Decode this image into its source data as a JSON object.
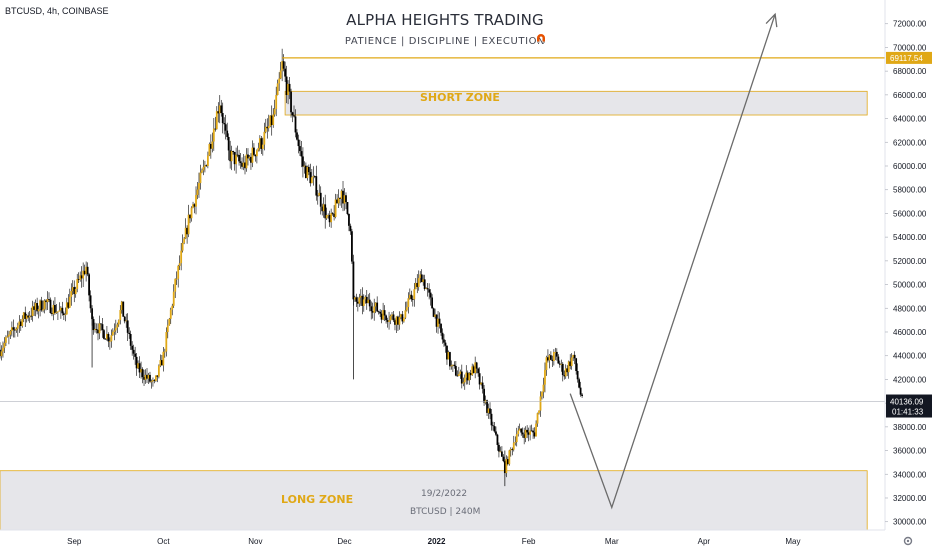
{
  "header": {
    "symbol_label": "BTCUSD, 4h, COINBASE"
  },
  "watermark": {
    "title": "ALPHA HEIGHTS TRADING",
    "subtitle": "PATIENCE  |  DISCIPLINE  |  EXECUTION",
    "icon": "magnet-icon",
    "icon_color": "#e65100"
  },
  "zones": {
    "short_label": "SHORT ZONE",
    "long_label": "LONG ZONE",
    "label_color": "#e0a816"
  },
  "snapshot": {
    "date": "19/2/2022",
    "symbol_tf": "BTCUSD | 240M"
  },
  "price_badges": {
    "high_line_value": "69117.54",
    "current_price": "40136.09",
    "countdown": "01:41:33"
  },
  "chart_data": {
    "type": "candlestick",
    "y_ticks": [
      "30000.00",
      "32000.00",
      "34000.00",
      "36000.00",
      "38000.00",
      "40000.00",
      "42000.00",
      "44000.00",
      "46000.00",
      "48000.00",
      "50000.00",
      "52000.00",
      "54000.00",
      "56000.00",
      "58000.00",
      "60000.00",
      "62000.00",
      "64000.00",
      "66000.00",
      "68000.00",
      "70000.00",
      "72000.00"
    ],
    "ylim": [
      29300,
      74000
    ],
    "x_ticks": [
      {
        "label": "Sep",
        "date": "2021-09-01"
      },
      {
        "label": "Oct",
        "date": "2021-10-01"
      },
      {
        "label": "Nov",
        "date": "2021-11-01"
      },
      {
        "label": "Dec",
        "date": "2021-12-01"
      },
      {
        "label": "2022",
        "date": "2022-01-01"
      },
      {
        "label": "Feb",
        "date": "2022-02-01"
      },
      {
        "label": "Mar",
        "date": "2022-03-01"
      },
      {
        "label": "Apr",
        "date": "2022-04-01"
      },
      {
        "label": "May",
        "date": "2022-05-01"
      }
    ],
    "xlim": [
      "2021-08-07",
      "2022-06-01"
    ],
    "high_line": {
      "price": 69117.54,
      "from": "2021-11-10",
      "color": "#e0a816"
    },
    "current_price_line": 40136.09,
    "short_zone": {
      "from": "2021-11-11",
      "to": "2022-05-26",
      "price_low": 64300,
      "price_high": 66300
    },
    "long_zone": {
      "from": "2021-08-07",
      "to": "2022-05-26",
      "price_low": 29300,
      "price_high": 34300
    },
    "projection": [
      {
        "date": "2022-02-15",
        "price": 40800
      },
      {
        "date": "2022-03-01",
        "price": 31200
      },
      {
        "date": "2022-04-25",
        "price": 72800
      }
    ],
    "price_path": [
      {
        "date": "2021-08-07",
        "price": 44500
      },
      {
        "date": "2021-08-14",
        "price": 47000
      },
      {
        "date": "2021-08-22",
        "price": 48500
      },
      {
        "date": "2021-08-28",
        "price": 47500
      },
      {
        "date": "2021-09-05",
        "price": 51500
      },
      {
        "date": "2021-09-07",
        "price": 46800
      },
      {
        "date": "2021-09-13",
        "price": 45500
      },
      {
        "date": "2021-09-17",
        "price": 48000
      },
      {
        "date": "2021-09-22",
        "price": 43000
      },
      {
        "date": "2021-09-28",
        "price": 41500
      },
      {
        "date": "2021-10-01",
        "price": 44000
      },
      {
        "date": "2021-10-05",
        "price": 50000
      },
      {
        "date": "2021-10-10",
        "price": 56000
      },
      {
        "date": "2021-10-15",
        "price": 60000
      },
      {
        "date": "2021-10-20",
        "price": 65500
      },
      {
        "date": "2021-10-23",
        "price": 61000
      },
      {
        "date": "2021-10-28",
        "price": 60000
      },
      {
        "date": "2021-11-03",
        "price": 62000
      },
      {
        "date": "2021-11-07",
        "price": 64000
      },
      {
        "date": "2021-11-10",
        "price": 68500
      },
      {
        "date": "2021-11-13",
        "price": 65000
      },
      {
        "date": "2021-11-17",
        "price": 60000
      },
      {
        "date": "2021-11-21",
        "price": 58500
      },
      {
        "date": "2021-11-26",
        "price": 55000
      },
      {
        "date": "2021-11-30",
        "price": 58000
      },
      {
        "date": "2021-12-03",
        "price": 55000
      },
      {
        "date": "2021-12-04",
        "price": 48500
      },
      {
        "date": "2021-12-09",
        "price": 48500
      },
      {
        "date": "2021-12-14",
        "price": 47500
      },
      {
        "date": "2021-12-20",
        "price": 47000
      },
      {
        "date": "2021-12-27",
        "price": 50800
      },
      {
        "date": "2022-01-01",
        "price": 47000
      },
      {
        "date": "2022-01-06",
        "price": 43000
      },
      {
        "date": "2022-01-10",
        "price": 42000
      },
      {
        "date": "2022-01-14",
        "price": 43000
      },
      {
        "date": "2022-01-21",
        "price": 37000
      },
      {
        "date": "2022-01-24",
        "price": 34500
      },
      {
        "date": "2022-01-28",
        "price": 37500
      },
      {
        "date": "2022-02-03",
        "price": 37500
      },
      {
        "date": "2022-02-07",
        "price": 43500
      },
      {
        "date": "2022-02-10",
        "price": 44000
      },
      {
        "date": "2022-02-13",
        "price": 42500
      },
      {
        "date": "2022-02-16",
        "price": 44000
      },
      {
        "date": "2022-02-19",
        "price": 40136
      }
    ],
    "candle_color_up": "#e0a816",
    "candle_color_down": "#000000"
  }
}
